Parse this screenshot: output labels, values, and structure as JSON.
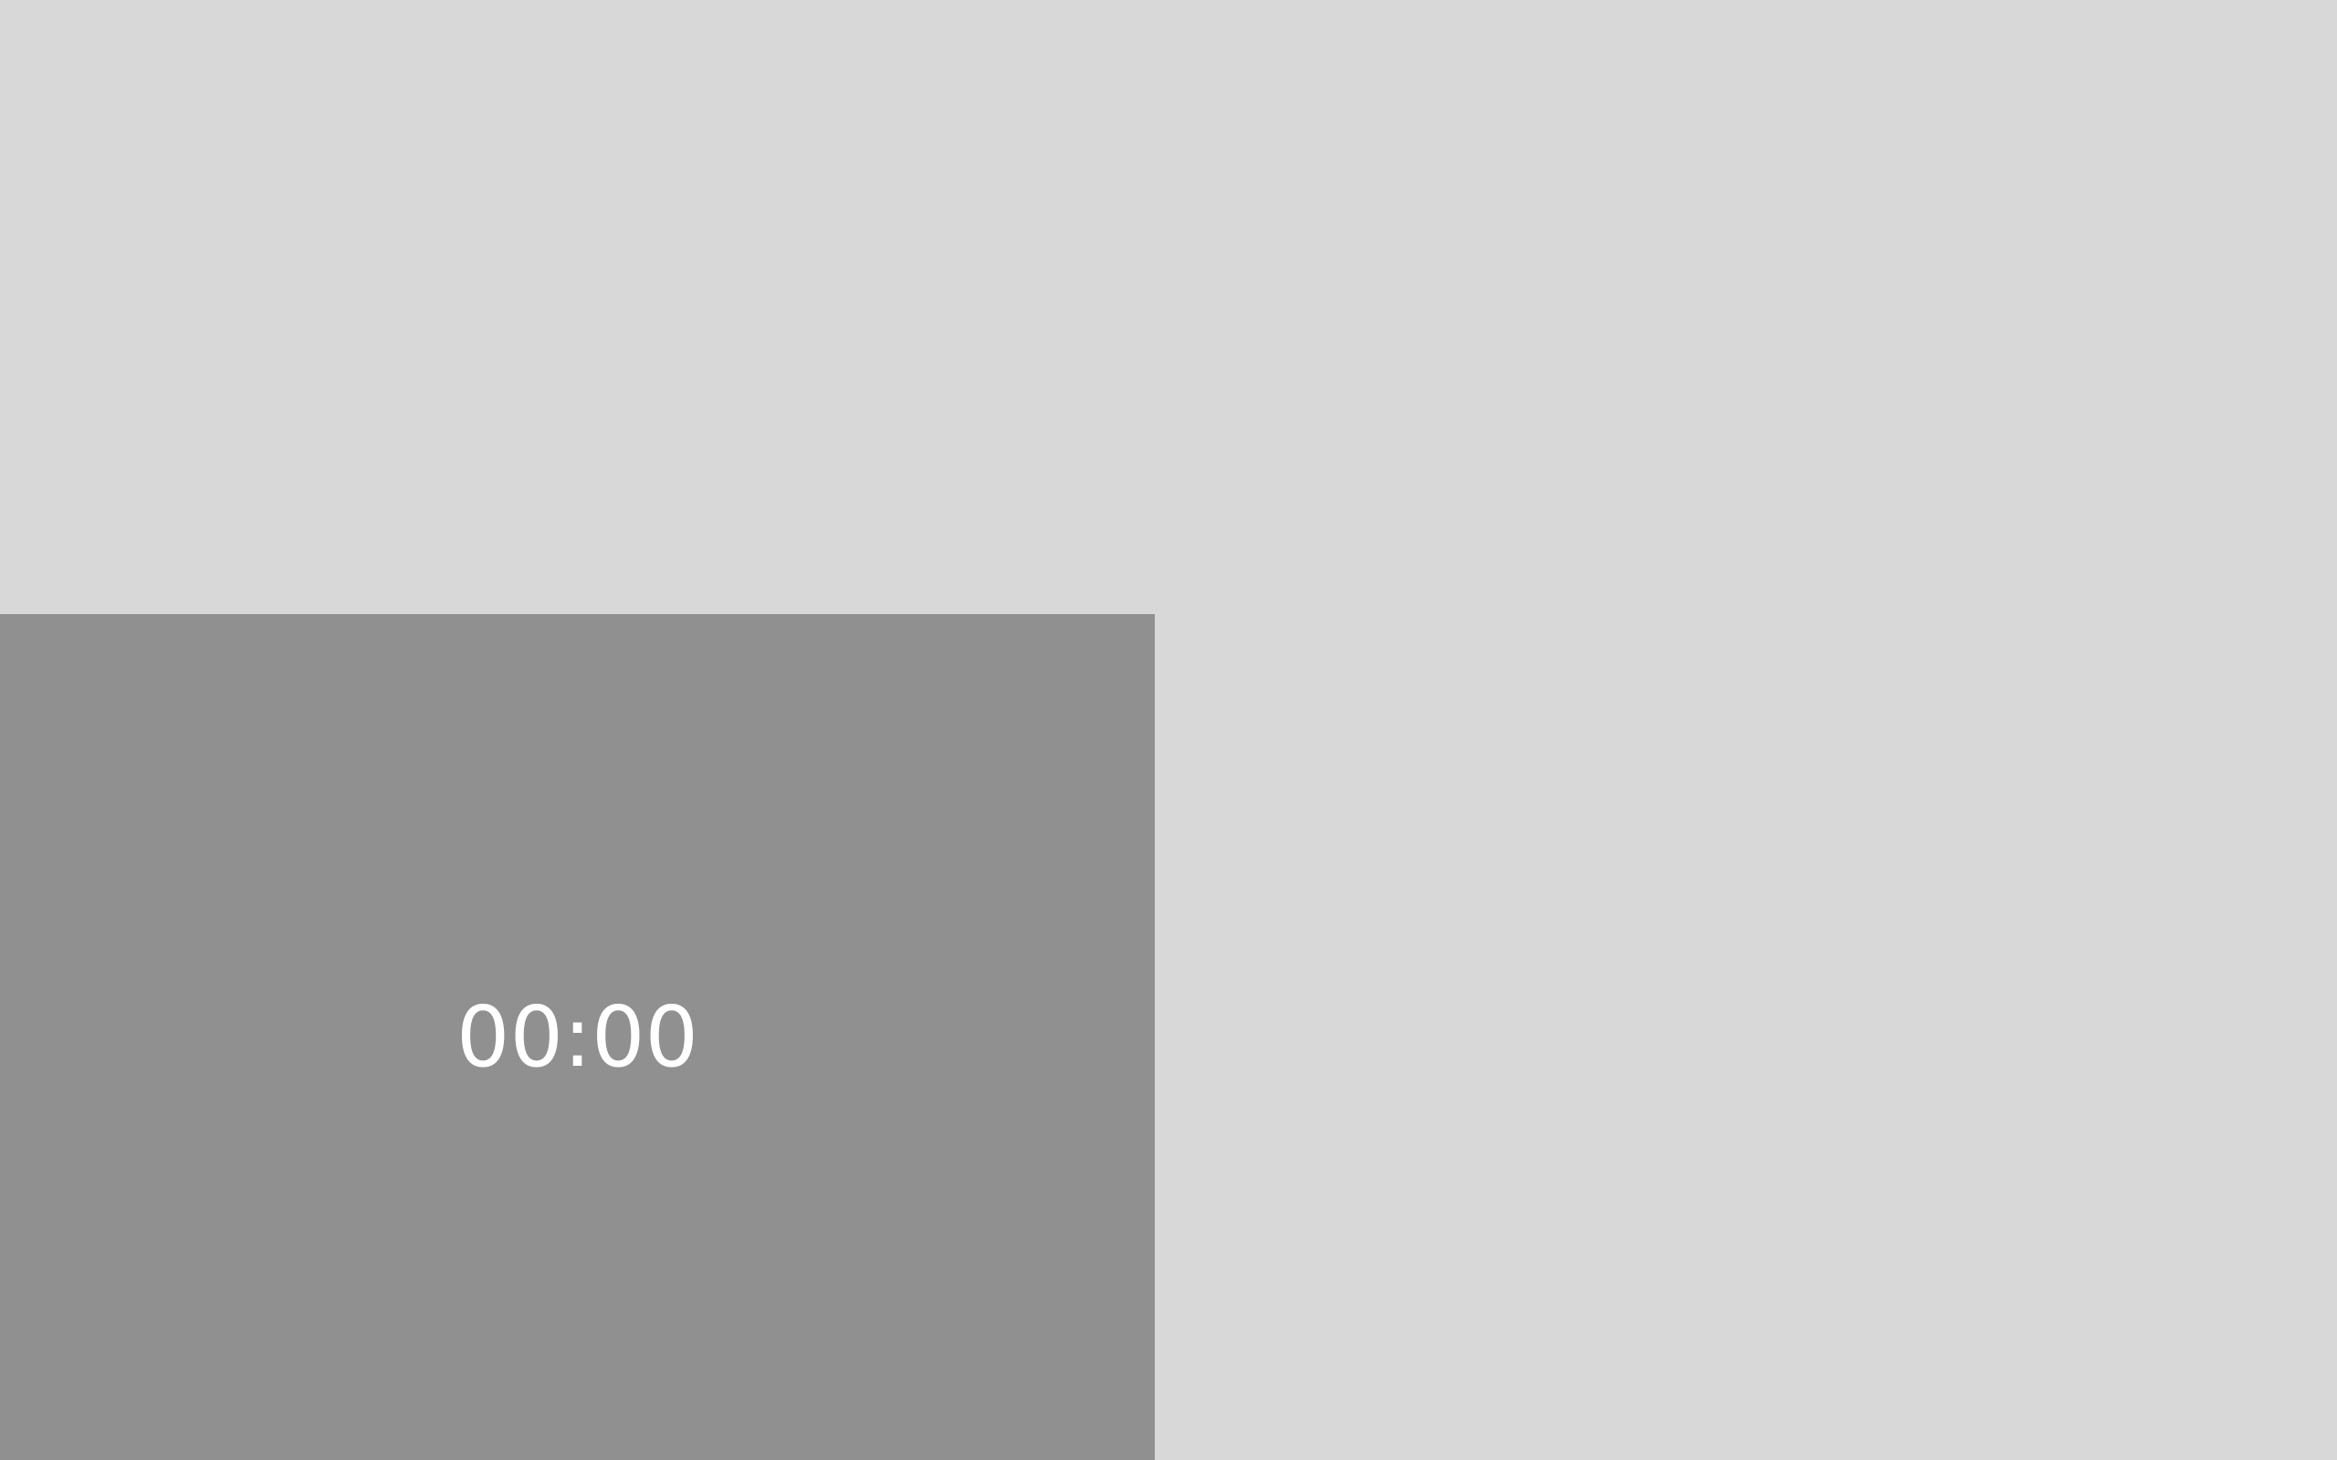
{
  "timer": {
    "display": "00:00"
  },
  "colors": {
    "background": "#d8d8d8",
    "timer_panel": "#909090",
    "timer_text": "#ffffff"
  }
}
